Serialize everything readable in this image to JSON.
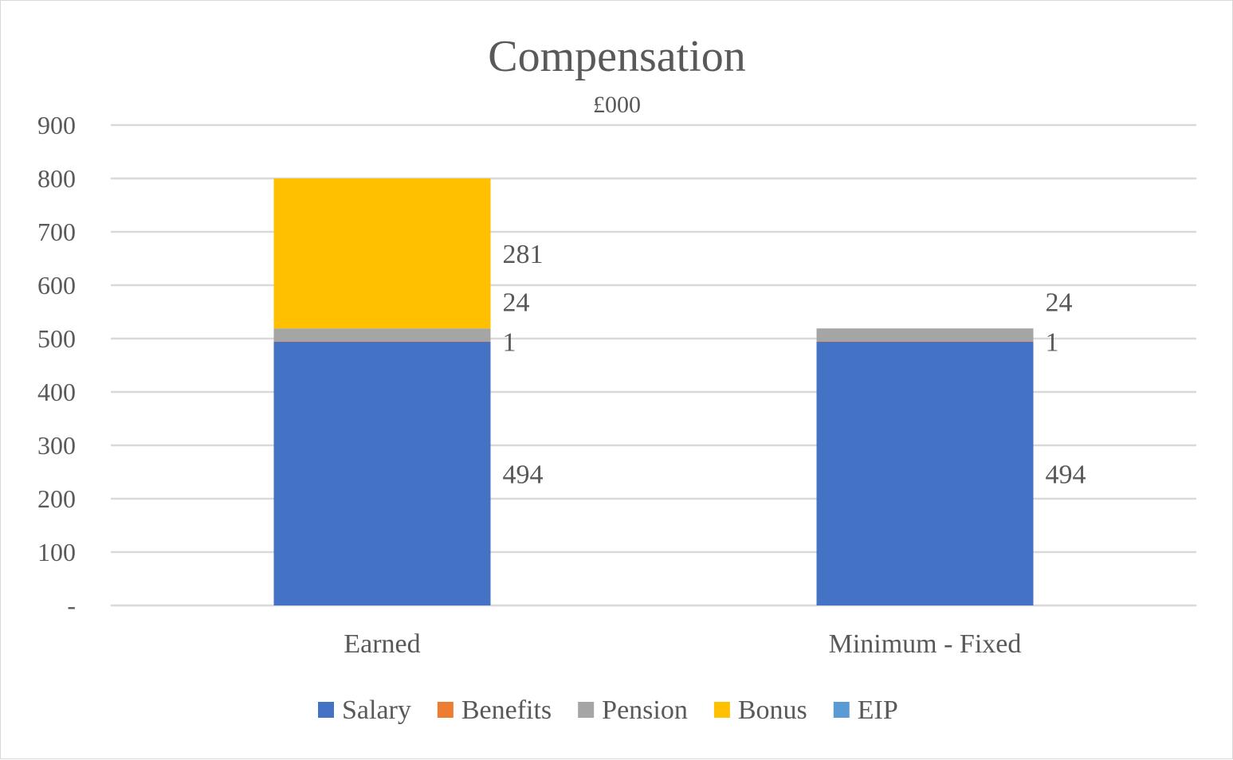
{
  "chart_data": {
    "type": "bar",
    "stacked": true,
    "title": "Compensation",
    "subtitle": "£000",
    "xlabel": "",
    "ylabel": "",
    "ylim": [
      0,
      900
    ],
    "yticks": [
      0,
      100,
      200,
      300,
      400,
      500,
      600,
      700,
      800,
      900
    ],
    "ytick_labels": [
      "-",
      "100",
      "200",
      "300",
      "400",
      "500",
      "600",
      "700",
      "800",
      "900"
    ],
    "grid": true,
    "legend_position": "bottom",
    "categories": [
      "Earned",
      "Minimum - Fixed"
    ],
    "series": [
      {
        "name": "Salary",
        "color": "#4472C4",
        "values": [
          494,
          494
        ],
        "labels": [
          "494",
          "494"
        ]
      },
      {
        "name": "Benefits",
        "color": "#ED7D31",
        "values": [
          1,
          1
        ],
        "labels": [
          "1",
          "1"
        ]
      },
      {
        "name": "Pension",
        "color": "#A5A5A5",
        "values": [
          24,
          24
        ],
        "labels": [
          "24",
          "24"
        ]
      },
      {
        "name": "Bonus",
        "color": "#FFC000",
        "values": [
          281,
          0
        ],
        "labels": [
          "281",
          ""
        ]
      },
      {
        "name": "EIP",
        "color": "#5B9BD5",
        "values": [
          0,
          0
        ],
        "labels": [
          "",
          ""
        ]
      }
    ]
  }
}
